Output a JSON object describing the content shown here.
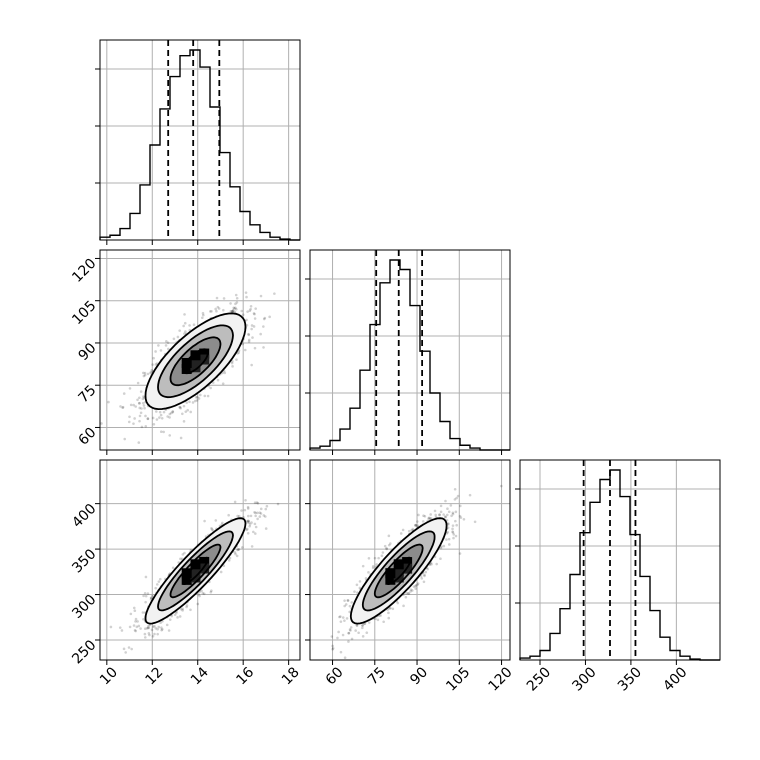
{
  "chart_data": {
    "type": "corner",
    "layout": "3x3 lower-triangle",
    "grid": true,
    "parameters": [
      {
        "index": 0,
        "range": [
          9.7,
          18.5
        ],
        "ticks": [
          10,
          12,
          14,
          16,
          18
        ],
        "hist": [
          0.015,
          0.025,
          0.06,
          0.14,
          0.29,
          0.5,
          0.69,
          0.86,
          0.97,
          1.0,
          0.91,
          0.7,
          0.46,
          0.28,
          0.15,
          0.08,
          0.04,
          0.015,
          0.005,
          0.0
        ],
        "quantiles": [
          12.7,
          13.8,
          14.95
        ]
      },
      {
        "index": 1,
        "range": [
          52,
          123
        ],
        "ticks": [
          60,
          75,
          90,
          105,
          120
        ],
        "hist": [
          0.01,
          0.02,
          0.05,
          0.11,
          0.22,
          0.42,
          0.66,
          0.88,
          1.0,
          0.95,
          0.76,
          0.52,
          0.3,
          0.15,
          0.06,
          0.025,
          0.01,
          0.0,
          0.0,
          0.0
        ],
        "quantiles": [
          75.5,
          83.5,
          91.8
        ]
      },
      {
        "index": 2,
        "range": [
          228,
          448
        ],
        "ticks": [
          250,
          300,
          350,
          400
        ],
        "hist": [
          0.01,
          0.02,
          0.05,
          0.14,
          0.27,
          0.45,
          0.67,
          0.83,
          0.95,
          1.0,
          0.86,
          0.66,
          0.44,
          0.26,
          0.12,
          0.05,
          0.02,
          0.005,
          0.0,
          0.0
        ],
        "quantiles": [
          298,
          327,
          355
        ]
      }
    ],
    "pairs": [
      {
        "x": 0,
        "y": 1,
        "center": [
          13.9,
          83.5
        ],
        "sd": [
          1.1,
          8.5
        ],
        "corr": 0.72
      },
      {
        "x": 0,
        "y": 2,
        "center": [
          13.9,
          326
        ],
        "sd": [
          1.1,
          29
        ],
        "corr": 0.9
      },
      {
        "x": 1,
        "y": 2,
        "center": [
          83.5,
          326
        ],
        "sd": [
          8.5,
          29
        ],
        "corr": 0.86
      }
    ],
    "contour_levels": [
      0.5,
      1.0,
      1.5,
      2.0
    ]
  }
}
